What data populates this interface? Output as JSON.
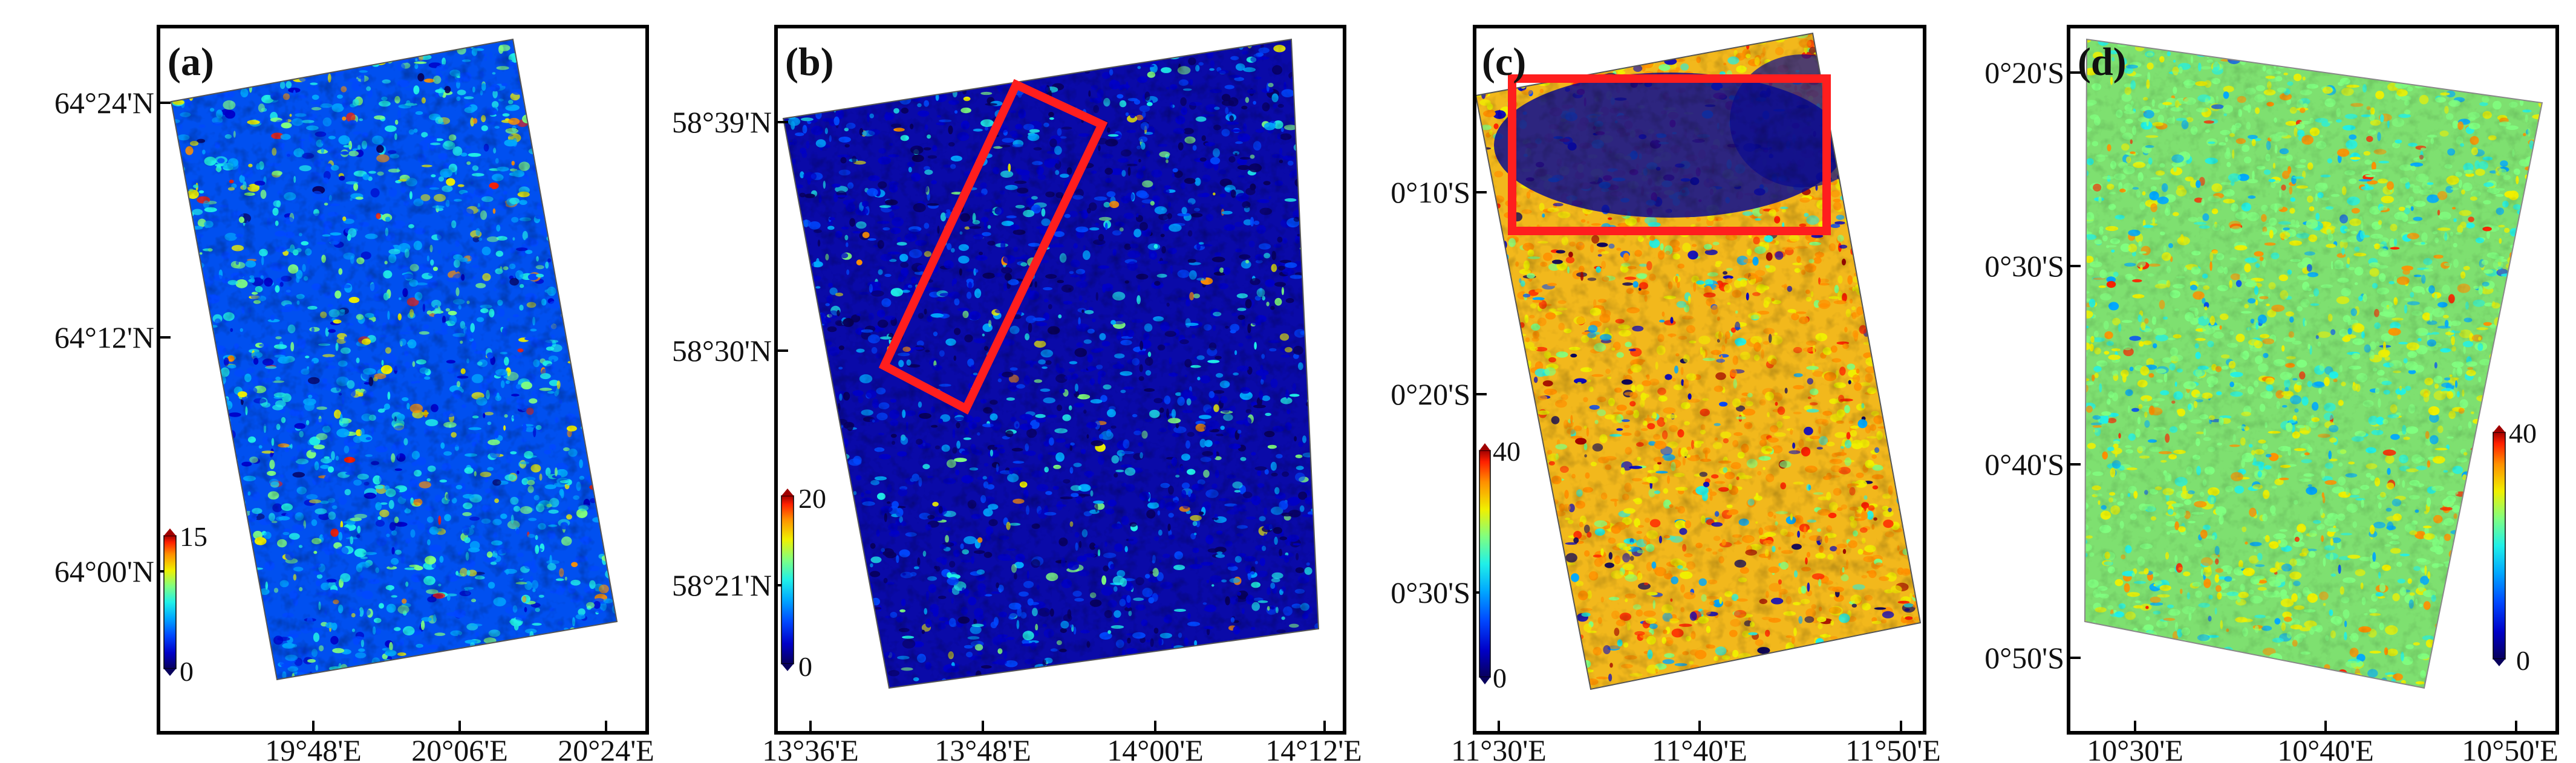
{
  "colormap": [
    "#08005c",
    "#0000c8",
    "#0048ff",
    "#00a8ff",
    "#20f0e8",
    "#80ff80",
    "#f0f000",
    "#ff9000",
    "#ff2000",
    "#a00000"
  ],
  "colors": {
    "highlight_box": "#ff1e1e",
    "frame": "#000000"
  },
  "panels": [
    {
      "id": "a",
      "label": "(a)",
      "lat_labels": [
        "64°24'N",
        "64°12'N",
        "64°00'N"
      ],
      "lon_labels": [
        "19°48'E",
        "20°06'E",
        "20°24'E"
      ],
      "colorbar": {
        "min": "0",
        "max": "15"
      },
      "color_weights": [
        2,
        6,
        34,
        22,
        18,
        10,
        5,
        2,
        1,
        0
      ],
      "highlight": null
    },
    {
      "id": "b",
      "label": "(b)",
      "lat_labels": [
        "58°39'N",
        "58°30'N",
        "58°21'N"
      ],
      "lon_labels": [
        "13°36'E",
        "13°48'E",
        "14°00'E",
        "14°12'E"
      ],
      "colorbar": {
        "min": "0",
        "max": "20"
      },
      "color_weights": [
        18,
        40,
        16,
        12,
        7,
        4,
        2,
        1,
        0,
        0
      ],
      "highlight": "rotated rectangle"
    },
    {
      "id": "c",
      "label": "(c)",
      "lat_labels": [
        "0°10'S",
        "0°20'S",
        "0°30'S"
      ],
      "lon_labels": [
        "11°30'E",
        "11°40'E",
        "11°50'E"
      ],
      "colorbar": {
        "min": "0",
        "max": "40"
      },
      "color_weights": [
        3,
        6,
        2,
        3,
        4,
        8,
        26,
        38,
        8,
        2
      ],
      "highlight": "rectangle"
    },
    {
      "id": "d",
      "label": "(d)",
      "lat_labels": [
        "0°20'S",
        "0°30'S",
        "0°40'S",
        "0°50'S"
      ],
      "lon_labels": [
        "10°30'E",
        "10°40'E",
        "10°50'E"
      ],
      "colorbar": {
        "min": "0",
        "max": "40"
      },
      "color_weights": [
        0,
        0,
        1,
        8,
        16,
        40,
        24,
        9,
        2,
        0
      ],
      "highlight": null
    }
  ]
}
